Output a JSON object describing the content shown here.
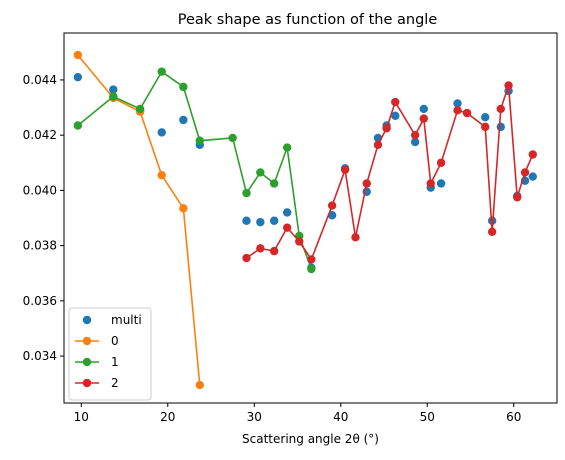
{
  "chart_data": {
    "type": "line",
    "title": "Peak shape as function of the angle",
    "xlabel": "Scattering angle 2θ (°)",
    "ylabel": "",
    "xlim": [
      8,
      65
    ],
    "ylim": [
      0.0323,
      0.0457
    ],
    "xticks": [
      10,
      20,
      30,
      40,
      50,
      60
    ],
    "yticks": [
      0.034,
      0.036,
      0.038,
      0.04,
      0.042,
      0.044
    ],
    "ytick_labels": [
      "0.034",
      "0.036",
      "0.038",
      "0.040",
      "0.042",
      "0.044"
    ],
    "grid": false,
    "legend_position": "lower-left",
    "series": [
      {
        "name": "multi",
        "style": "markers",
        "color": "#1f77b4",
        "x": [
          9.6,
          13.7,
          16.8,
          19.3,
          21.8,
          23.7,
          29.1,
          30.7,
          32.3,
          33.8,
          36.6,
          39.0,
          40.5,
          43.0,
          44.3,
          45.3,
          46.3,
          48.6,
          49.6,
          50.4,
          51.6,
          53.5,
          54.6,
          56.7,
          57.5,
          58.5,
          59.4,
          60.4,
          61.3,
          62.2
        ],
        "y": [
          0.0441,
          0.04365,
          0.0429,
          0.0421,
          0.04255,
          0.04165,
          0.0389,
          0.03885,
          0.0389,
          0.0392,
          0.0372,
          0.0391,
          0.0408,
          0.03995,
          0.0419,
          0.04235,
          0.0427,
          0.04175,
          0.04295,
          0.0401,
          0.04025,
          0.04315,
          0.0428,
          0.04265,
          0.0389,
          0.0423,
          0.0436,
          0.0398,
          0.04035,
          0.0405
        ]
      },
      {
        "name": "0",
        "style": "line-markers",
        "color": "#ff7f0e",
        "x": [
          9.6,
          13.7,
          16.8,
          19.3,
          21.8,
          23.7
        ],
        "y": [
          0.0449,
          0.04335,
          0.04285,
          0.04055,
          0.03935,
          0.03295
        ]
      },
      {
        "name": "1",
        "style": "line-markers",
        "color": "#2ca02c",
        "x": [
          9.6,
          13.7,
          16.8,
          19.3,
          21.8,
          23.7,
          27.5,
          29.1,
          30.7,
          32.3,
          33.8,
          35.2,
          36.6
        ],
        "y": [
          0.04235,
          0.0434,
          0.04295,
          0.0443,
          0.04375,
          0.0418,
          0.0419,
          0.0399,
          0.04065,
          0.04025,
          0.04155,
          0.03835,
          0.03715
        ]
      },
      {
        "name": "2",
        "style": "line-markers",
        "color": "#d62728",
        "x": [
          29.1,
          30.7,
          32.3,
          33.8,
          35.2,
          36.6,
          39.0,
          40.5,
          41.7,
          43.0,
          44.3,
          45.3,
          46.3,
          48.6,
          49.6,
          50.4,
          51.6,
          53.5,
          54.6,
          56.7,
          57.5,
          58.5,
          59.4,
          60.4,
          61.3,
          62.2
        ],
        "y": [
          0.03755,
          0.0379,
          0.0378,
          0.03865,
          0.03815,
          0.0375,
          0.03945,
          0.04075,
          0.0383,
          0.04025,
          0.04165,
          0.04225,
          0.0432,
          0.042,
          0.0426,
          0.04025,
          0.041,
          0.0429,
          0.0428,
          0.0423,
          0.0385,
          0.04295,
          0.0438,
          0.03975,
          0.04065,
          0.0413
        ]
      }
    ]
  }
}
